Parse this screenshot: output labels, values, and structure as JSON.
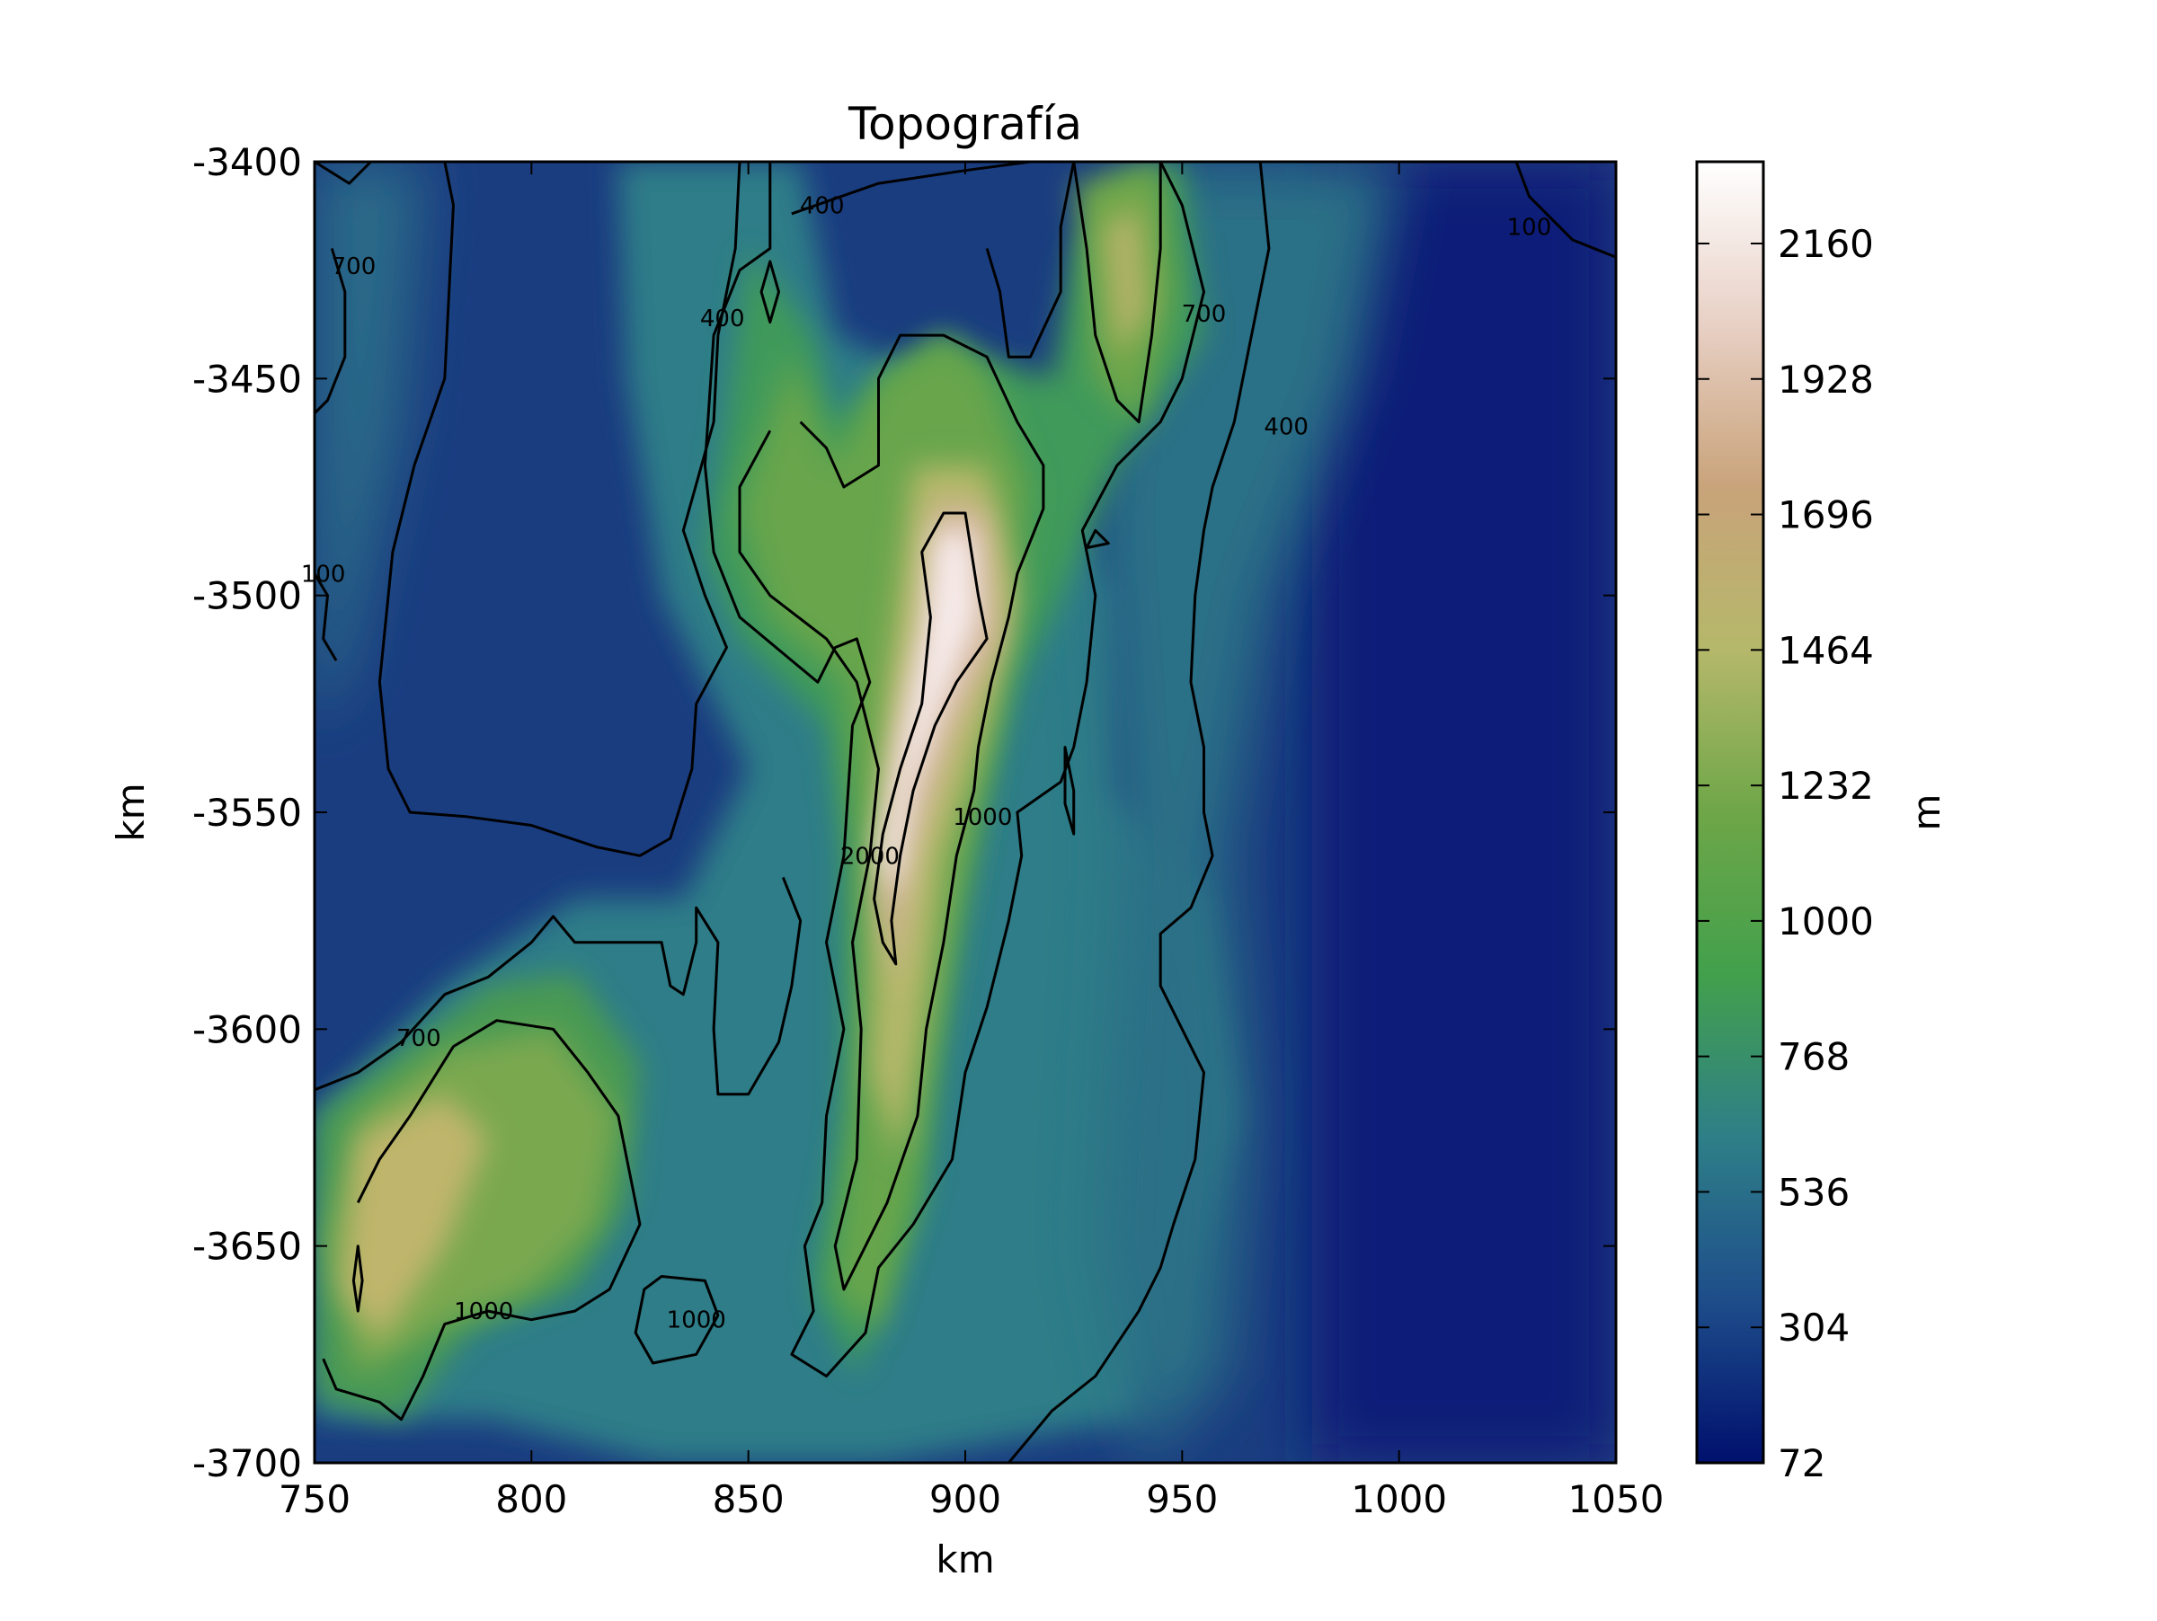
{
  "chart_data": {
    "type": "heatmap",
    "title": "Topografía",
    "xlabel": "km",
    "ylabel": "km",
    "xlim": [
      750,
      1050
    ],
    "ylim": [
      -3700,
      -3400
    ],
    "xticks": [
      750,
      800,
      850,
      900,
      950,
      1000,
      1050
    ],
    "yticks": [
      -3400,
      -3450,
      -3500,
      -3550,
      -3600,
      -3650,
      -3700
    ],
    "colorbar": {
      "label": "m",
      "range": [
        72,
        2300
      ],
      "ticks": [
        72,
        304,
        536,
        768,
        1000,
        1232,
        1464,
        1696,
        1928,
        2160
      ],
      "colormap": "gist_earth-like",
      "colors": [
        "#00106e",
        "#1e4d8a",
        "#2e7f88",
        "#42a04c",
        "#6ea648",
        "#b5b86a",
        "#c9a37a",
        "#e8d0c5",
        "#ffffff"
      ]
    },
    "contour_levels": [
      100,
      400,
      700,
      1000,
      2000
    ],
    "contour_labels": [
      {
        "text": "100",
        "x": 1030,
        "y": -3415
      },
      {
        "text": "100",
        "x": 752,
        "y": -3495
      },
      {
        "text": "400",
        "x": 867,
        "y": -3410
      },
      {
        "text": "400",
        "x": 844,
        "y": -3436
      },
      {
        "text": "400",
        "x": 974,
        "y": -3461
      },
      {
        "text": "700",
        "x": 759,
        "y": -3424
      },
      {
        "text": "700",
        "x": 955,
        "y": -3435
      },
      {
        "text": "700",
        "x": 774,
        "y": -3602
      },
      {
        "text": "1000",
        "x": 789,
        "y": -3665
      },
      {
        "text": "1000",
        "x": 838,
        "y": -3667
      },
      {
        "text": "1000",
        "x": 904,
        "y": -3551
      },
      {
        "text": "2000",
        "x": 878,
        "y": -3560
      }
    ],
    "peaks": [
      {
        "x": 897,
        "y": -3498,
        "value": 2300
      },
      {
        "x": 935,
        "y": -3428,
        "value": 1600
      },
      {
        "x": 770,
        "y": -3635,
        "value": 1750
      },
      {
        "x": 885,
        "y": -3580,
        "value": 1850
      }
    ]
  }
}
